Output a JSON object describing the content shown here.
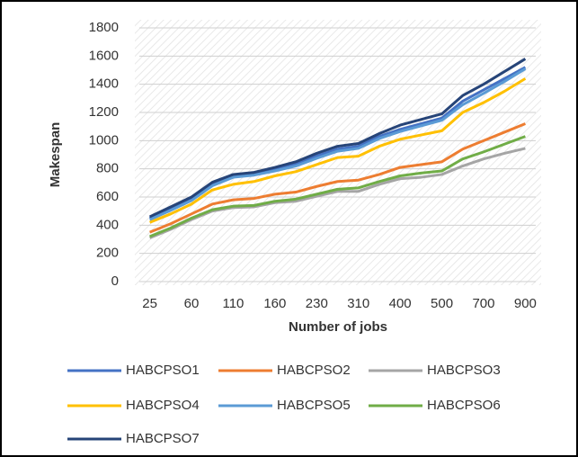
{
  "chart_data": {
    "type": "line",
    "x_label": "Number of jobs",
    "y_label": "Makespan",
    "categories": [
      "25",
      null,
      "60",
      null,
      "110",
      null,
      "160",
      null,
      "230",
      null,
      "310",
      null,
      "400",
      null,
      "500",
      null,
      "700",
      null,
      "900"
    ],
    "series": [
      {
        "name": "HABCPSO1",
        "color": "#4472c4",
        "values": [
          450,
          520,
          590,
          690,
          750,
          765,
          800,
          835,
          890,
          940,
          960,
          1030,
          1080,
          1120,
          1160,
          1280,
          1360,
          1440,
          1520
        ]
      },
      {
        "name": "HABCPSO2",
        "color": "#ed7d31",
        "values": [
          350,
          410,
          480,
          550,
          580,
          590,
          620,
          635,
          675,
          710,
          720,
          760,
          810,
          830,
          850,
          940,
          1000,
          1060,
          1120
        ]
      },
      {
        "name": "HABCPSO3",
        "color": "#a5a5a5",
        "values": [
          310,
          370,
          440,
          500,
          525,
          530,
          560,
          570,
          605,
          640,
          640,
          690,
          730,
          740,
          760,
          820,
          870,
          910,
          945
        ]
      },
      {
        "name": "HABCPSO4",
        "color": "#ffc000",
        "values": [
          420,
          480,
          550,
          650,
          690,
          710,
          750,
          780,
          830,
          880,
          890,
          960,
          1010,
          1040,
          1070,
          1200,
          1270,
          1350,
          1440
        ]
      },
      {
        "name": "HABCPSO5",
        "color": "#5b9bd5",
        "values": [
          440,
          505,
          575,
          680,
          740,
          755,
          785,
          820,
          875,
          925,
          945,
          1015,
          1065,
          1105,
          1145,
          1255,
          1335,
          1420,
          1510
        ]
      },
      {
        "name": "HABCPSO6",
        "color": "#70ad47",
        "values": [
          320,
          380,
          450,
          510,
          535,
          540,
          570,
          585,
          620,
          655,
          665,
          710,
          750,
          770,
          785,
          870,
          920,
          975,
          1030
        ]
      },
      {
        "name": "HABCPSO7",
        "color": "#264478",
        "values": [
          460,
          530,
          600,
          705,
          760,
          775,
          810,
          850,
          910,
          960,
          980,
          1050,
          1110,
          1150,
          1190,
          1320,
          1400,
          1490,
          1580
        ]
      }
    ],
    "ylim": [
      0,
      1800
    ],
    "yticks": [
      0,
      200,
      400,
      600,
      800,
      1000,
      1200,
      1400,
      1600,
      1800
    ],
    "grid": true
  }
}
